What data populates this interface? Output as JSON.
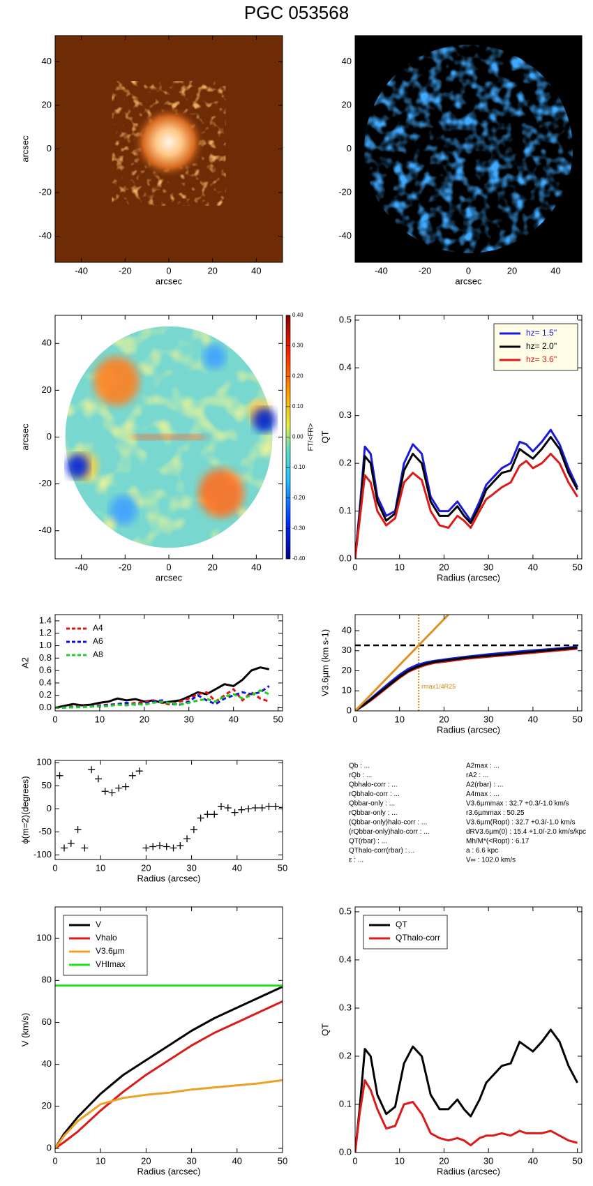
{
  "title": "PGC 053568",
  "chart_data": [
    {
      "type": "image",
      "colormap": "copper",
      "xlabel": "arcsec",
      "ylabel": "arcsec",
      "xlim": [
        -52,
        52
      ],
      "ylim": [
        -52,
        52
      ],
      "xticks": [
        -40,
        -20,
        0,
        20,
        40
      ],
      "yticks": [
        -40,
        -20,
        0,
        20,
        40
      ]
    },
    {
      "type": "image",
      "colormap": "blue",
      "xlabel": "arcsec",
      "xlim": [
        -52,
        52
      ],
      "ylim": [
        -52,
        52
      ],
      "xticks": [
        -40,
        -20,
        0,
        20,
        40
      ],
      "yticks": [
        -40,
        -20,
        0,
        20,
        40
      ]
    },
    {
      "type": "map",
      "xlabel": "arcsec",
      "ylabel": "arcsec",
      "xlim": [
        -52,
        52
      ],
      "ylim": [
        -52,
        52
      ],
      "xticks": [
        -40,
        -20,
        0,
        20,
        40
      ],
      "yticks": [
        -40,
        -20,
        0,
        20,
        40
      ],
      "colorbar_label": "FT/<FR>",
      "colorbar_lim": [
        -0.4,
        0.4
      ],
      "colorbar_ticks": [
        {
          "value": 0.4,
          "label": "0.40"
        },
        {
          "value": 0.3,
          "label": "0.30"
        },
        {
          "value": 0.2,
          "label": "0.20"
        },
        {
          "value": 0.1,
          "label": "0.10"
        },
        {
          "value": 0,
          "label": "0.00"
        },
        {
          "value": -0.1,
          "label": "-0.10"
        },
        {
          "value": -0.2,
          "label": "-0.20"
        },
        {
          "value": -0.3,
          "label": "-0.30"
        },
        {
          "value": -0.4,
          "label": "-0.40"
        }
      ]
    },
    {
      "type": "line",
      "xlabel": "Radius (arcsec)",
      "ylabel": "QT",
      "xlim": [
        0,
        51
      ],
      "ylim": [
        0,
        0.51
      ],
      "xticks": [
        0,
        10,
        20,
        30,
        40,
        50
      ],
      "yticks": [
        {
          "value": 0,
          "label": "0.0"
        },
        0.1,
        0.2,
        0.3,
        0.4,
        0.5
      ],
      "legend": "upper right",
      "legend_frame": true,
      "legend_background": "#fffde6",
      "legend_text_colored": true,
      "x": [
        0,
        1,
        2.2,
        3.5,
        5,
        7,
        9,
        11,
        13,
        15,
        17,
        19,
        21,
        23,
        24.5,
        26,
        28,
        29.5,
        31,
        33,
        35,
        37,
        38.5,
        40,
        42,
        44,
        46,
        48,
        50
      ],
      "series": [
        {
          "name": "hz=  1.5''",
          "color": "#1a1adc",
          "values": [
            0,
            0.1,
            0.235,
            0.22,
            0.13,
            0.09,
            0.1,
            0.2,
            0.24,
            0.22,
            0.13,
            0.1,
            0.1,
            0.12,
            0.1,
            0.08,
            0.12,
            0.155,
            0.17,
            0.19,
            0.2,
            0.245,
            0.24,
            0.225,
            0.245,
            0.27,
            0.24,
            0.19,
            0.15
          ]
        },
        {
          "name": "hz=  2.0''",
          "color": "#000000",
          "values": [
            0,
            0.09,
            0.215,
            0.2,
            0.12,
            0.08,
            0.095,
            0.185,
            0.22,
            0.2,
            0.12,
            0.09,
            0.09,
            0.11,
            0.09,
            0.075,
            0.11,
            0.145,
            0.16,
            0.18,
            0.185,
            0.23,
            0.22,
            0.21,
            0.23,
            0.255,
            0.23,
            0.18,
            0.145
          ]
        },
        {
          "name": "hz=  3.6''",
          "color": "#dc1a1a",
          "values": [
            0,
            0.08,
            0.175,
            0.16,
            0.1,
            0.07,
            0.085,
            0.16,
            0.18,
            0.165,
            0.1,
            0.07,
            0.065,
            0.09,
            0.08,
            0.065,
            0.1,
            0.125,
            0.135,
            0.15,
            0.16,
            0.195,
            0.205,
            0.19,
            0.2,
            0.22,
            0.2,
            0.16,
            0.13
          ]
        }
      ]
    },
    {
      "type": "line",
      "ylabel": "A2",
      "xlim": [
        0,
        51
      ],
      "ylim": [
        -0.05,
        1.5
      ],
      "xticks": [
        0,
        10,
        20,
        30,
        40,
        50
      ],
      "yticks": [
        {
          "value": 0,
          "label": "0.0"
        },
        0.2,
        0.4,
        0.6,
        0.8,
        {
          "value": 1,
          "label": "1.0"
        },
        1.2,
        1.4
      ],
      "legend": "upper left",
      "legend_frame": false,
      "x": [
        0,
        2,
        4,
        6,
        8,
        10,
        12,
        14,
        16,
        18,
        20,
        22,
        24,
        26,
        28,
        30,
        32,
        34,
        36,
        38,
        40,
        42,
        44,
        46,
        48
      ],
      "series": [
        {
          "color": "#000000",
          "values": [
            0,
            0.03,
            0.06,
            0.04,
            0.05,
            0.08,
            0.1,
            0.15,
            0.12,
            0.14,
            0.1,
            0.12,
            0.08,
            0.1,
            0.12,
            0.18,
            0.25,
            0.22,
            0.3,
            0.38,
            0.35,
            0.45,
            0.6,
            0.65,
            0.62
          ]
        },
        {
          "name": "A4",
          "color": "#e01010",
          "dash": true,
          "values": [
            0,
            0.01,
            0.02,
            0.03,
            0.02,
            0.04,
            0.05,
            0.06,
            0.05,
            0.08,
            0.09,
            0.12,
            0.08,
            0.05,
            0.1,
            0.15,
            0.22,
            0.25,
            0.1,
            0.2,
            0.3,
            0.12,
            0.25,
            0.15,
            0.1
          ]
        },
        {
          "name": "A6",
          "color": "#1010e0",
          "dash": true,
          "values": [
            0,
            0.01,
            0.01,
            0.02,
            0.02,
            0.03,
            0.04,
            0.06,
            0.08,
            0.05,
            0.07,
            0.1,
            0.12,
            0.06,
            0.05,
            0.1,
            0.2,
            0.12,
            0.06,
            0.15,
            0.2,
            0.25,
            0.22,
            0.25,
            0.35
          ]
        },
        {
          "name": "A8",
          "color": "#20d020",
          "dash": true,
          "values": [
            0,
            0,
            0.01,
            0.01,
            0.02,
            0.02,
            0.03,
            0.05,
            0.04,
            0.06,
            0.05,
            0.08,
            0.1,
            0.07,
            0.05,
            0.08,
            0.12,
            0.14,
            0.1,
            0.18,
            0.22,
            0.15,
            0.2,
            0.28,
            0.22
          ]
        }
      ]
    },
    {
      "type": "line",
      "xlabel": "Radius (arcsec)",
      "ylabel": "V3.6µm (km s-1)",
      "xlim": [
        0,
        51
      ],
      "ylim": [
        0,
        48
      ],
      "xticks": [
        0,
        10,
        20,
        30,
        40,
        50
      ],
      "yticks": [
        0,
        10,
        20,
        30,
        40
      ],
      "hline": 32.7,
      "hline_color": "#000000",
      "vline": 14.3,
      "vline_color": "#d08a10",
      "annotation": "rmax1/4R25",
      "annotation_color": "#d08a10",
      "x": [
        0,
        2,
        4,
        6,
        8,
        10,
        12,
        14,
        16,
        18,
        20,
        25,
        30,
        35,
        40,
        45,
        50
      ],
      "series": [
        {
          "color": "#1a1adc",
          "values": [
            0,
            3.2,
            7,
            10.8,
            14.5,
            18,
            21,
            23,
            24.2,
            25,
            25.6,
            27,
            28.2,
            29.2,
            30.2,
            31,
            32
          ]
        },
        {
          "color": "#dc1a1a",
          "values": [
            0,
            2.8,
            6,
            9.5,
            13,
            16.5,
            19.5,
            21.5,
            23,
            24,
            24.5,
            26,
            27,
            28,
            29,
            30,
            31
          ]
        },
        {
          "color": "#000000",
          "values": [
            0,
            3,
            6.5,
            10,
            13.5,
            17,
            20,
            22,
            23.5,
            24.5,
            25,
            26.5,
            27.5,
            28.5,
            29.5,
            30.5,
            31.5
          ]
        },
        {
          "color": "#e09020",
          "x": [
            0,
            21
          ],
          "values": [
            0,
            48
          ]
        }
      ]
    },
    {
      "type": "scatter",
      "xlabel": "Radius (arcsec)",
      "ylabel": "ϕ(m=2)(degrees)",
      "xlim": [
        0,
        50
      ],
      "ylim": [
        -110,
        105
      ],
      "xticks": [
        0,
        10,
        20,
        30,
        40,
        50
      ],
      "yticks": [
        -100,
        -50,
        0,
        50,
        100
      ],
      "color": "#000000",
      "x": [
        1,
        2,
        3.5,
        5,
        6.5,
        8,
        9.5,
        11,
        12.5,
        14,
        15.5,
        17,
        18.5,
        20,
        21.5,
        23,
        24.5,
        26,
        27.5,
        29,
        30.5,
        32,
        33.5,
        35,
        36.5,
        38,
        39.5,
        41,
        42.5,
        44,
        45.5,
        47,
        48.5,
        50
      ],
      "values": [
        72,
        -85,
        -75,
        -45,
        -85,
        85,
        65,
        38,
        35,
        45,
        48,
        72,
        82,
        -85,
        -82,
        -80,
        -82,
        -85,
        -80,
        -65,
        -45,
        -20,
        -12,
        -12,
        5,
        2,
        -8,
        -2,
        0,
        2,
        2,
        5,
        5,
        3
      ]
    },
    {
      "type": "line",
      "xlabel": "Radius (arcsec)",
      "ylabel": "V (km/s)",
      "xlim": [
        0,
        50
      ],
      "ylim": [
        -2,
        115
      ],
      "xticks": [
        0,
        10,
        20,
        30,
        40,
        50
      ],
      "yticks": [
        0,
        20,
        40,
        60,
        80,
        100
      ],
      "legend": "upper left",
      "legend_frame": true,
      "legend_background": "#ffffff",
      "x": [
        0,
        2,
        5,
        10,
        15,
        20,
        25,
        30,
        35,
        40,
        45,
        50
      ],
      "series": [
        {
          "name": "V",
          "color": "#000000",
          "values": [
            0,
            7,
            15,
            26,
            35,
            42,
            49,
            56,
            62,
            67,
            72,
            77
          ]
        },
        {
          "name": "Vhalo",
          "color": "#dc1a1a",
          "values": [
            0,
            3,
            8,
            18,
            27,
            35,
            42,
            49,
            55,
            60,
            65,
            70
          ]
        },
        {
          "name": "V3.6µm",
          "color": "#f0a020",
          "values": [
            0,
            6,
            13,
            21,
            24,
            25.5,
            26.5,
            28,
            29,
            30,
            31,
            32.5
          ]
        },
        {
          "name": "VHImax",
          "color": "#20e020",
          "values": [
            77.5,
            77.5,
            77.5,
            77.5,
            77.5,
            77.5,
            77.5,
            77.5,
            77.5,
            77.5,
            77.5,
            77.5
          ]
        }
      ]
    },
    {
      "type": "line",
      "xlabel": "Radius (arcsec)",
      "ylabel": "QT",
      "xlim": [
        0,
        51
      ],
      "ylim": [
        0,
        0.51
      ],
      "xticks": [
        0,
        10,
        20,
        30,
        40,
        50
      ],
      "yticks": [
        {
          "value": 0,
          "label": "0.0"
        },
        0.1,
        0.2,
        0.3,
        0.4,
        0.5
      ],
      "legend": "upper left",
      "legend_frame": true,
      "legend_background": "#ffffff",
      "x": [
        0,
        1,
        2.2,
        3.5,
        5,
        7,
        9,
        11,
        13,
        15,
        17,
        19,
        21,
        23,
        24.5,
        26,
        28,
        29.5,
        31,
        33,
        35,
        37,
        38.5,
        40,
        42,
        44,
        46,
        48,
        50
      ],
      "series": [
        {
          "name": "QT",
          "color": "#000000",
          "values": [
            0,
            0.09,
            0.215,
            0.2,
            0.12,
            0.08,
            0.095,
            0.185,
            0.22,
            0.2,
            0.12,
            0.09,
            0.09,
            0.11,
            0.09,
            0.075,
            0.11,
            0.145,
            0.16,
            0.18,
            0.185,
            0.23,
            0.22,
            0.21,
            0.23,
            0.255,
            0.23,
            0.18,
            0.145
          ]
        },
        {
          "name": "QThalo-corr",
          "color": "#dc1a1a",
          "values": [
            0,
            0.08,
            0.15,
            0.13,
            0.09,
            0.05,
            0.055,
            0.1,
            0.105,
            0.08,
            0.04,
            0.03,
            0.025,
            0.03,
            0.025,
            0.015,
            0.03,
            0.035,
            0.035,
            0.04,
            0.035,
            0.045,
            0.04,
            0.04,
            0.04,
            0.045,
            0.035,
            0.025,
            0.02
          ]
        }
      ]
    }
  ],
  "parameters": {
    "left": [
      "Qb : ...",
      "rQb : ...",
      "Qbhalo-corr : ...",
      "rQbhalo-corr : ...",
      "Qbbar-only : ...",
      "rQbbar-only : ...",
      "(Qbbar-only)halo-corr : ...",
      "(rQbbar-only)halo-corr : ...",
      "QT(rbar) : ...",
      "QThalo-corr(rbar) : ...",
      "ε : ..."
    ],
    "right": [
      "A2max : ...",
      "rA2 : ...",
      "A2(rbar) : ...",
      "A4max : ...",
      "V3.6µmmax :  32.7 +0.3/-1.0 km/s",
      "r3.6µmmax :  50.25",
      "V3.6µm(Ropt) :  32.7 +0.3/-1.0 km/s",
      "dRV3.6µm(0) :  15.4 +1.0/-2.0 km/s/kpc",
      "Mh/M*(<Ropt) :  6.17",
      "a :  6.6 kpc",
      "V∞ : 102.0 km/s"
    ]
  }
}
